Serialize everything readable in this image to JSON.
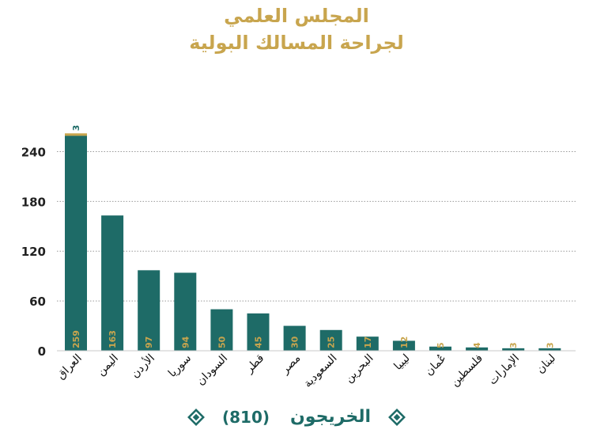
{
  "title_line1": "المجلس العلمي",
  "title_line2": "لجراحة المسالك البولية",
  "legend": {
    "label": "الخريجون",
    "count": "(810)"
  },
  "colors": {
    "bar": "#1e6b67",
    "stack_top": "#c8a54e",
    "title": "#c8a54e",
    "bar_value_label": "#c8a54e",
    "top_value_label": "#1e6b67"
  },
  "chart_data": {
    "type": "bar",
    "stacked": true,
    "categories": [
      "العراق",
      "اليمن",
      "الأردن",
      "سوريا",
      "السودان",
      "قطر",
      "مصر",
      "السعودية",
      "البحرين",
      "ليبيا",
      "عُمان",
      "فلسطين",
      "الإمارات",
      "لبنان"
    ],
    "series": [
      {
        "values": [
          259,
          163,
          97,
          94,
          50,
          45,
          30,
          25,
          17,
          12,
          5,
          4,
          3,
          3
        ]
      },
      {
        "values": [
          3,
          0,
          0,
          0,
          0,
          0,
          0,
          0,
          0,
          0,
          0,
          0,
          0,
          0
        ]
      }
    ],
    "yticks": [
      0,
      60,
      120,
      180,
      240
    ],
    "ylim": [
      0,
      270
    ],
    "grid": true,
    "grid_style": "dotted"
  }
}
